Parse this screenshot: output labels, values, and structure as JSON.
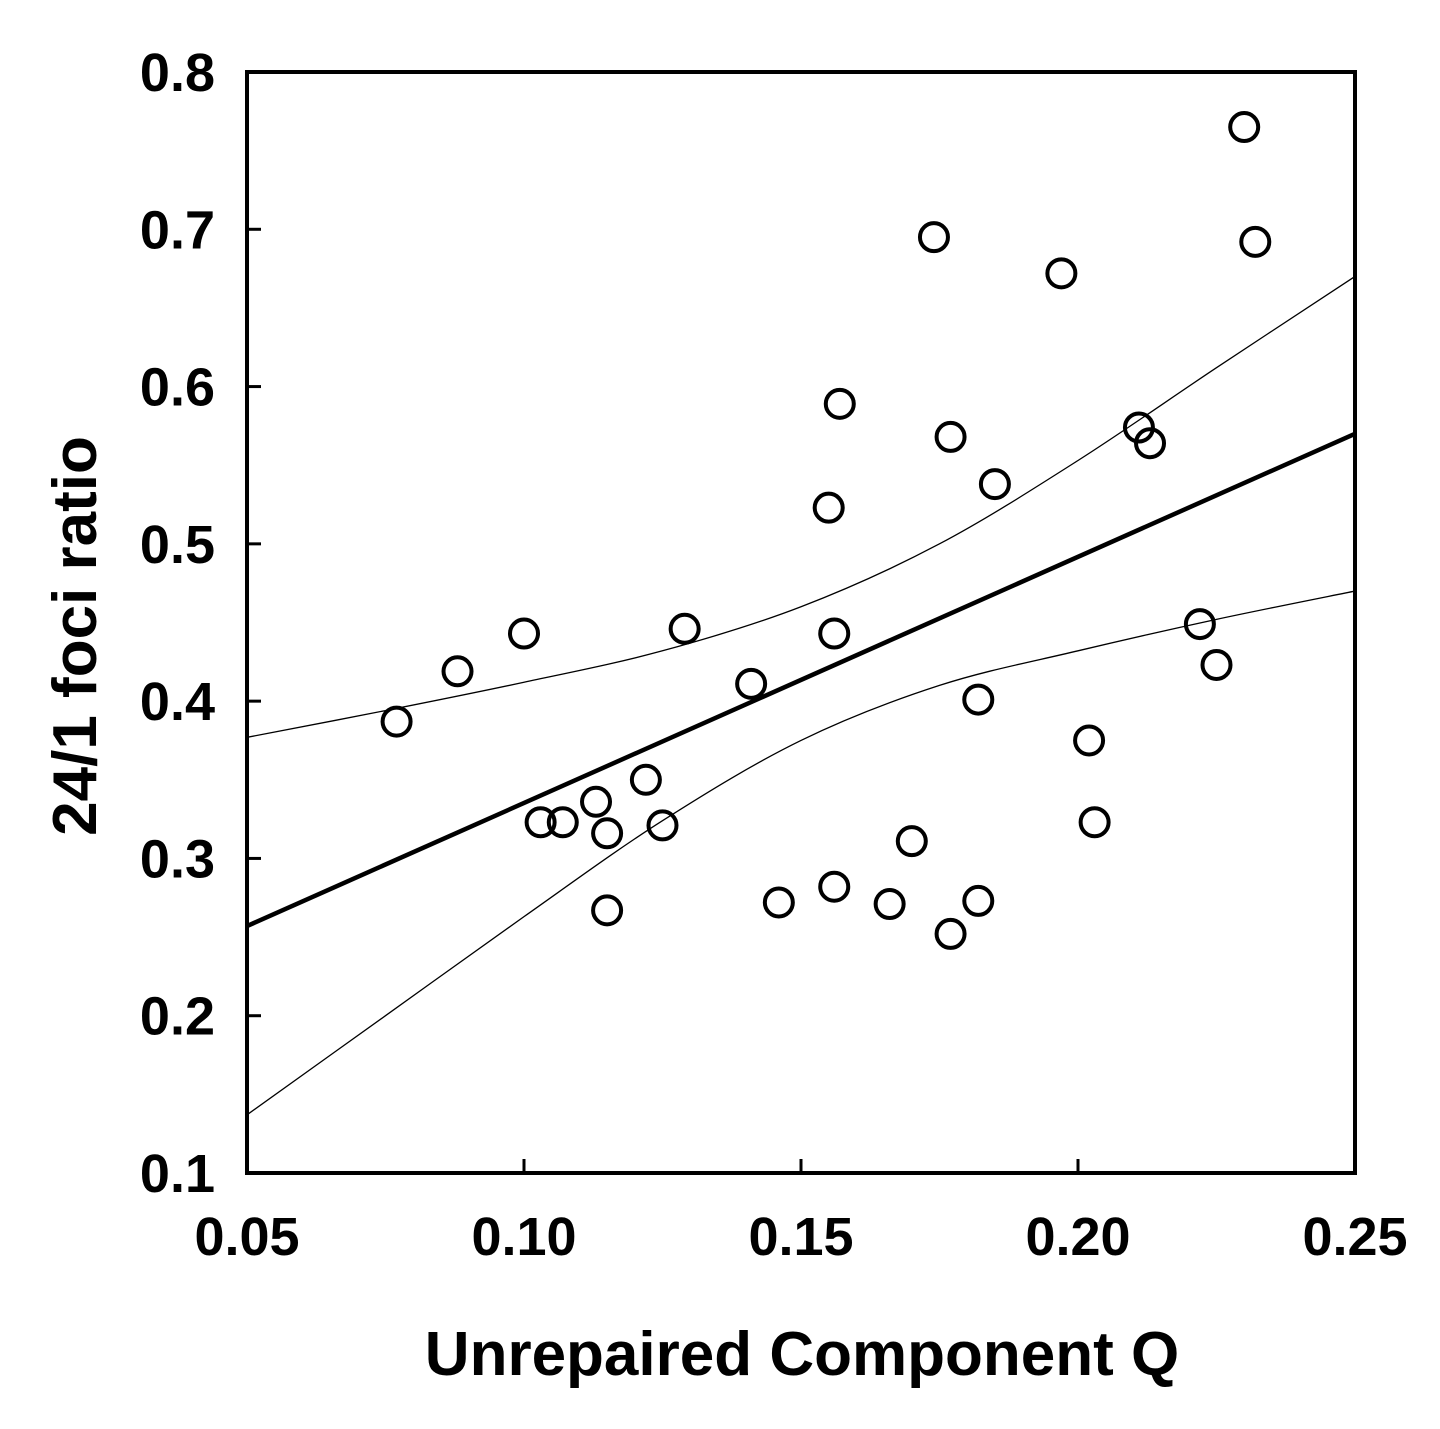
{
  "chart_data": {
    "type": "scatter",
    "title": "",
    "xlabel": "Unrepaired Component Q",
    "ylabel": "24/1 foci ratio",
    "xlim": [
      0.05,
      0.25
    ],
    "ylim": [
      0.1,
      0.8
    ],
    "x_ticks": [
      "0.05",
      "0.10",
      "0.15",
      "0.20",
      "0.25"
    ],
    "y_ticks": [
      "0.1",
      "0.2",
      "0.3",
      "0.4",
      "0.5",
      "0.6",
      "0.7",
      "0.8"
    ],
    "x_tick_values": [
      0.05,
      0.1,
      0.15,
      0.2,
      0.25
    ],
    "y_tick_values": [
      0.1,
      0.2,
      0.3,
      0.4,
      0.5,
      0.6,
      0.7,
      0.8
    ],
    "grid": false,
    "legend": "none",
    "marker": "open-circle",
    "colors": {
      "marker": "#000000",
      "line": "#000000",
      "background": "#ffffff"
    },
    "points": [
      {
        "x": 0.077,
        "y": 0.387
      },
      {
        "x": 0.088,
        "y": 0.419
      },
      {
        "x": 0.1,
        "y": 0.443
      },
      {
        "x": 0.103,
        "y": 0.323
      },
      {
        "x": 0.107,
        "y": 0.323
      },
      {
        "x": 0.113,
        "y": 0.336
      },
      {
        "x": 0.115,
        "y": 0.316
      },
      {
        "x": 0.115,
        "y": 0.267
      },
      {
        "x": 0.122,
        "y": 0.35
      },
      {
        "x": 0.125,
        "y": 0.321
      },
      {
        "x": 0.129,
        "y": 0.446
      },
      {
        "x": 0.141,
        "y": 0.411
      },
      {
        "x": 0.146,
        "y": 0.272
      },
      {
        "x": 0.155,
        "y": 0.523
      },
      {
        "x": 0.156,
        "y": 0.443
      },
      {
        "x": 0.156,
        "y": 0.282
      },
      {
        "x": 0.157,
        "y": 0.589
      },
      {
        "x": 0.166,
        "y": 0.271
      },
      {
        "x": 0.17,
        "y": 0.311
      },
      {
        "x": 0.174,
        "y": 0.695
      },
      {
        "x": 0.177,
        "y": 0.568
      },
      {
        "x": 0.177,
        "y": 0.252
      },
      {
        "x": 0.182,
        "y": 0.401
      },
      {
        "x": 0.182,
        "y": 0.273
      },
      {
        "x": 0.185,
        "y": 0.538
      },
      {
        "x": 0.197,
        "y": 0.672
      },
      {
        "x": 0.202,
        "y": 0.375
      },
      {
        "x": 0.203,
        "y": 0.323
      },
      {
        "x": 0.211,
        "y": 0.574
      },
      {
        "x": 0.213,
        "y": 0.564
      },
      {
        "x": 0.222,
        "y": 0.449
      },
      {
        "x": 0.225,
        "y": 0.423
      },
      {
        "x": 0.23,
        "y": 0.765
      },
      {
        "x": 0.232,
        "y": 0.692
      }
    ],
    "series": [
      {
        "role": "regression-fit",
        "x": [
          0.05,
          0.25
        ],
        "y": [
          0.257,
          0.57
        ]
      },
      {
        "role": "upper-confidence-band",
        "x": [
          0.05,
          0.075,
          0.1,
          0.125,
          0.15,
          0.175,
          0.2,
          0.225,
          0.25
        ],
        "y": [
          0.377,
          0.394,
          0.412,
          0.432,
          0.46,
          0.5,
          0.553,
          0.612,
          0.67
        ]
      },
      {
        "role": "lower-confidence-band",
        "x": [
          0.05,
          0.075,
          0.1,
          0.125,
          0.15,
          0.175,
          0.2,
          0.225,
          0.25
        ],
        "y": [
          0.137,
          0.2,
          0.263,
          0.324,
          0.375,
          0.41,
          0.432,
          0.452,
          0.47
        ]
      }
    ]
  }
}
